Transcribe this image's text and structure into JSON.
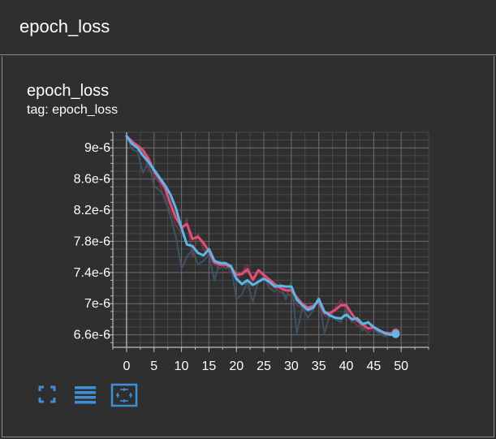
{
  "header": {
    "title": "epoch_loss"
  },
  "chart": {
    "title": "epoch_loss",
    "subtitle": "tag: epoch_loss"
  },
  "toolbar": {
    "buttons": [
      {
        "name": "fullscreen-icon"
      },
      {
        "name": "data-table-icon"
      },
      {
        "name": "fit-domain-icon"
      }
    ]
  },
  "colors": {
    "background": "#303030",
    "series_pink": "#e64d75",
    "series_blue": "#5db6e8",
    "grid": "#6b6b6b",
    "toolbar_icon": "#3f8fd8"
  },
  "chart_data": {
    "type": "line",
    "title": "epoch_loss",
    "subtitle": "tag: epoch_loss",
    "xlabel": "",
    "ylabel": "",
    "xlim": [
      -2.5,
      55
    ],
    "ylim": [
      6.44e-06,
      9.2e-06
    ],
    "xticks": [
      0,
      5,
      10,
      15,
      20,
      25,
      30,
      35,
      40,
      45,
      50
    ],
    "xtick_labels": [
      "0",
      "5",
      "10",
      "15",
      "20",
      "25",
      "30",
      "35",
      "40",
      "45",
      "50"
    ],
    "yticks": [
      6.6e-06,
      7e-06,
      7.4e-06,
      7.8e-06,
      8.2e-06,
      8.6e-06,
      9e-06
    ],
    "ytick_labels": [
      "6.6e-6",
      "7e-6",
      "7.4e-6",
      "7.8e-6",
      "8.2e-6",
      "8.6e-6",
      "9e-6"
    ],
    "grid": true,
    "series": [
      {
        "color": "#e64d75",
        "x": [
          0,
          1,
          2,
          3,
          4,
          5,
          6,
          7,
          8,
          9,
          10,
          11,
          12,
          13,
          14,
          15,
          16,
          17,
          18,
          19,
          20,
          21,
          22,
          23,
          24,
          25,
          26,
          27,
          28,
          29,
          30,
          31,
          32,
          33,
          34,
          35,
          36,
          37,
          38,
          39,
          40,
          41,
          42,
          43,
          44,
          45,
          46,
          47,
          48,
          49
        ],
        "values": [
          9.15e-06,
          9.08e-06,
          9.03e-06,
          8.97e-06,
          8.86e-06,
          8.7e-06,
          8.6e-06,
          8.48e-06,
          8.28e-06,
          8.1e-06,
          7.98e-06,
          8.02e-06,
          7.83e-06,
          7.86e-06,
          7.78e-06,
          7.67e-06,
          7.53e-06,
          7.5e-06,
          7.5e-06,
          7.47e-06,
          7.37e-06,
          7.38e-06,
          7.44e-06,
          7.31e-06,
          7.43e-06,
          7.37e-06,
          7.31e-06,
          7.25e-06,
          7.2e-06,
          7.17e-06,
          7.17e-06,
          7.08e-06,
          7e-06,
          6.95e-06,
          6.97e-06,
          7.03e-06,
          6.88e-06,
          6.88e-06,
          6.92e-06,
          6.98e-06,
          6.98e-06,
          6.87e-06,
          6.78e-06,
          6.73e-06,
          6.68e-06,
          6.7e-06,
          6.65e-06,
          6.63e-06,
          6.62e-06,
          6.63e-06
        ]
      },
      {
        "color": "#5db6e8",
        "x": [
          0,
          1,
          2,
          3,
          4,
          5,
          6,
          7,
          8,
          9,
          10,
          11,
          12,
          13,
          14,
          15,
          16,
          17,
          18,
          19,
          20,
          21,
          22,
          23,
          24,
          25,
          26,
          27,
          28,
          29,
          30,
          31,
          32,
          33,
          34,
          35,
          36,
          37,
          38,
          39,
          40,
          41,
          42,
          43,
          44,
          45,
          46,
          47,
          48,
          49
        ],
        "values": [
          9.15e-06,
          9.05e-06,
          9e-06,
          8.9e-06,
          8.82e-06,
          8.72e-06,
          8.62e-06,
          8.52e-06,
          8.4e-06,
          8.22e-06,
          7.97e-06,
          7.76e-06,
          7.74e-06,
          7.65e-06,
          7.62e-06,
          7.7e-06,
          7.55e-06,
          7.52e-06,
          7.52e-06,
          7.48e-06,
          7.32e-06,
          7.25e-06,
          7.3e-06,
          7.24e-06,
          7.28e-06,
          7.32e-06,
          7.28e-06,
          7.22e-06,
          7.23e-06,
          7.22e-06,
          7.22e-06,
          7.05e-06,
          6.98e-06,
          6.92e-06,
          6.95e-06,
          7.06e-06,
          6.9e-06,
          6.85e-06,
          6.82e-06,
          6.81e-06,
          6.86e-06,
          6.8e-06,
          6.81e-06,
          6.74e-06,
          6.76e-06,
          6.7e-06,
          6.66e-06,
          6.62e-06,
          6.6e-06,
          6.61e-06
        ]
      },
      {
        "color": "#3e5866",
        "x": [
          0,
          1,
          2,
          3,
          4,
          5,
          6,
          7,
          8,
          9,
          10,
          11,
          12,
          13,
          14,
          15,
          16,
          17,
          18,
          19,
          20,
          21,
          22,
          23,
          24,
          25,
          26,
          27,
          28,
          29,
          30,
          31,
          32,
          33,
          34,
          35,
          36,
          37,
          38,
          39,
          40,
          41,
          42,
          43,
          44,
          45,
          46,
          47,
          48,
          49
        ],
        "values": [
          9.15e-06,
          8.98e-06,
          8.95e-06,
          8.68e-06,
          8.82e-06,
          8.52e-06,
          8.45e-06,
          8.38e-06,
          8.12e-06,
          7.85e-06,
          7.45e-06,
          7.6e-06,
          7.7e-06,
          7.5e-06,
          7.55e-06,
          7.62e-06,
          7.3e-06,
          7.55e-06,
          7.45e-06,
          7.5e-06,
          7.05e-06,
          7.12e-06,
          7.28e-06,
          7.02e-06,
          7.3e-06,
          7.35e-06,
          7.2e-06,
          7.15e-06,
          7.25e-06,
          7.05e-06,
          7.28e-06,
          6.62e-06,
          6.95e-06,
          6.82e-06,
          6.92e-06,
          7.1e-06,
          6.62e-06,
          6.85e-06,
          6.8e-06,
          6.76e-06,
          6.95e-06,
          6.76e-06,
          6.83e-06,
          6.65e-06,
          6.78e-06,
          6.66e-06,
          6.62e-06,
          6.58e-06,
          6.6e-06,
          6.59e-06
        ]
      },
      {
        "color": "#6e3a4b",
        "x": [
          0,
          1,
          2,
          3,
          4,
          5,
          6,
          7,
          8,
          9,
          10,
          11,
          12,
          13,
          14,
          15,
          16,
          17,
          18,
          19,
          20,
          21,
          22,
          23,
          24,
          25,
          26,
          27,
          28,
          29,
          30,
          31,
          32,
          33,
          34,
          35,
          36,
          37,
          38,
          39,
          40,
          41,
          42,
          43,
          44,
          45,
          46,
          47,
          48,
          49
        ],
        "values": [
          9.15e-06,
          9.1e-06,
          9e-06,
          8.95e-06,
          8.72e-06,
          8.65e-06,
          8.55e-06,
          8.3e-06,
          8.2e-06,
          8e-06,
          7.9e-06,
          8.1e-06,
          7.6e-06,
          7.9e-06,
          7.7e-06,
          7.6e-06,
          7.5e-06,
          7.45e-06,
          7.52e-06,
          7.4e-06,
          7.3e-06,
          7.4e-06,
          7.5e-06,
          7.28e-06,
          7.4e-06,
          7.35e-06,
          7.25e-06,
          7.2e-06,
          7.15e-06,
          7.1e-06,
          7.12e-06,
          6.98e-06,
          6.95e-06,
          6.9e-06,
          6.93e-06,
          7.1e-06,
          6.85e-06,
          6.82e-06,
          6.95e-06,
          7.05e-06,
          6.92e-06,
          6.8e-06,
          6.72e-06,
          6.7e-06,
          6.62e-06,
          6.7e-06,
          6.62e-06,
          6.6e-06,
          6.62e-06,
          6.65e-06
        ]
      }
    ]
  }
}
